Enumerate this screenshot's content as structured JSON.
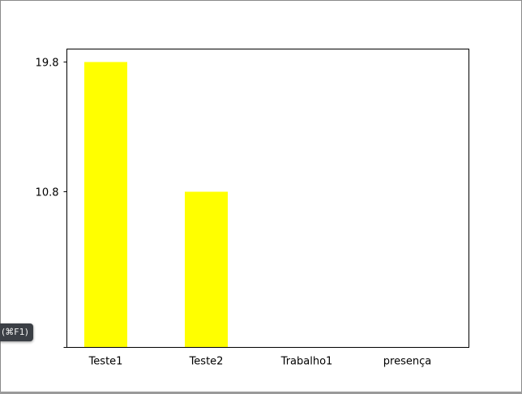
{
  "tooltip": {
    "text": "(⌘F1)"
  },
  "chart_data": {
    "type": "bar",
    "title": "",
    "xlabel": "",
    "ylabel": "",
    "categories": [
      "Teste1",
      "Teste2",
      "Trabalho1",
      "presença"
    ],
    "values": [
      19.8,
      10.8,
      0,
      0
    ],
    "yticks": [
      0,
      10.8,
      19.8
    ],
    "ytick_labels": [
      "",
      "10.8",
      "19.8"
    ],
    "ylim": [
      0,
      20.7
    ],
    "bar_color": "#ffff00",
    "grid": false,
    "legend": "none"
  }
}
